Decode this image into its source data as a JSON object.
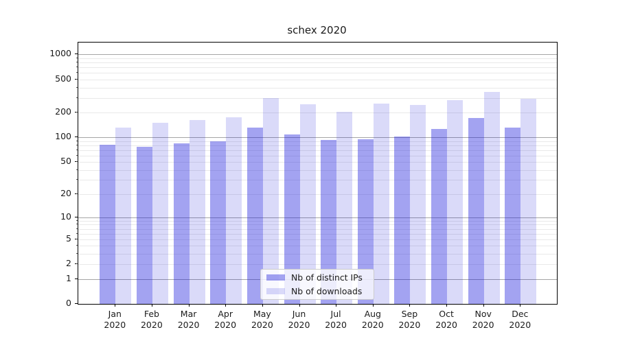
{
  "title": "schex 2020",
  "colors": {
    "ips_fill": "rgba(25,25,220,0.40)",
    "downloads_fill": "rgba(10,10,215,0.15)",
    "major_grid": "#a5a5a5",
    "minor_grid": "#e9e9e9",
    "spine": "#000000",
    "text": "#1a1a1a",
    "legend_border": "#cccccc"
  },
  "legend": {
    "items": [
      {
        "label": "Nb of distinct IPs",
        "series_key": "ips"
      },
      {
        "label": "Nb of downloads",
        "series_key": "downloads"
      }
    ]
  },
  "axes": {
    "y_tick_values": [
      0,
      1,
      2,
      5,
      10,
      20,
      50,
      100,
      200,
      500,
      1000
    ],
    "y_tick_labels": [
      "0",
      "1",
      "2",
      "5",
      "10",
      "20",
      "50",
      "100",
      "200",
      "500",
      "1000"
    ],
    "y_major_grid_values": [
      1,
      10,
      100,
      1000
    ],
    "y_minor_grid_values": [
      2,
      3,
      4,
      5,
      6,
      7,
      8,
      9,
      20,
      30,
      40,
      50,
      60,
      70,
      80,
      90,
      200,
      300,
      400,
      500,
      600,
      700,
      800,
      900
    ],
    "x_tick_months": [
      "Jan",
      "Feb",
      "Mar",
      "Apr",
      "May",
      "Jun",
      "Jul",
      "Aug",
      "Sep",
      "Oct",
      "Nov",
      "Dec"
    ],
    "x_year": "2020"
  },
  "chart_data": {
    "type": "bar",
    "title": "schex 2020",
    "categories": [
      "Jan 2020",
      "Feb 2020",
      "Mar 2020",
      "Apr 2020",
      "May 2020",
      "Jun 2020",
      "Jul 2020",
      "Aug 2020",
      "Sep 2020",
      "Oct 2020",
      "Nov 2020",
      "Dec 2020"
    ],
    "series": [
      {
        "name": "Nb of distinct IPs",
        "values": [
          81,
          76,
          84,
          89,
          132,
          108,
          92,
          95,
          102,
          126,
          170,
          130
        ]
      },
      {
        "name": "Nb of downloads",
        "values": [
          132,
          151,
          163,
          176,
          300,
          252,
          202,
          257,
          246,
          283,
          357,
          292
        ]
      }
    ],
    "xlabel": "",
    "ylabel": "",
    "yscale": "log1p",
    "ylim": [
      0,
      1400
    ],
    "yticks": [
      0,
      1,
      2,
      5,
      10,
      20,
      50,
      100,
      200,
      500,
      1000
    ],
    "grid": true,
    "legend_position": "lower center"
  }
}
